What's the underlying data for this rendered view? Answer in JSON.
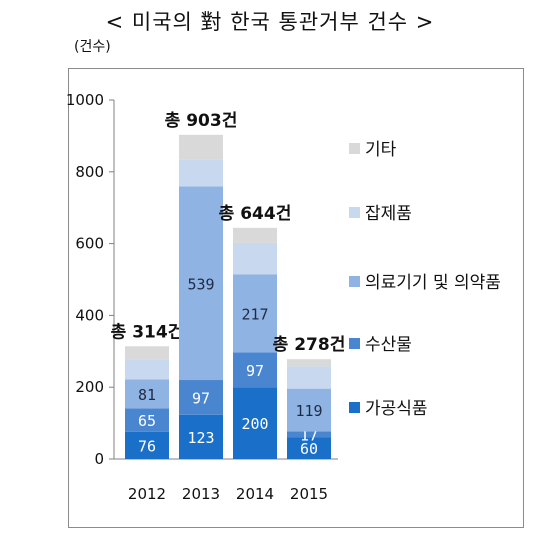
{
  "title": "< 미국의 對 한국 통관거부 건수 >",
  "unit": "(건수)",
  "chart_data": {
    "type": "bar",
    "stacked": true,
    "categories": [
      "2012",
      "2013",
      "2014",
      "2015"
    ],
    "series": [
      {
        "name": "가공식품",
        "values": [
          76,
          123,
          200,
          60
        ],
        "color": "#1a6fc9"
      },
      {
        "name": "수산물",
        "values": [
          65,
          97,
          97,
          17
        ],
        "color": "#4a86d0"
      },
      {
        "name": "의료기기 및 의약품",
        "values": [
          81,
          539,
          217,
          119
        ],
        "color": "#8fb4e3"
      },
      {
        "name": "잡제품",
        "values": [
          56,
          76,
          88,
          62
        ],
        "color": "#c8d8ee"
      },
      {
        "name": "기타",
        "values": [
          36,
          68,
          42,
          20
        ],
        "color": "#d9d9d9"
      }
    ],
    "show_label": [
      true,
      true,
      true,
      false
    ],
    "totals": [
      "총 314건",
      "총 903건",
      "총 644건",
      "총 278건"
    ],
    "ylim": [
      0,
      1000
    ],
    "yticks": [
      0,
      200,
      400,
      600,
      800,
      1000
    ],
    "grid": false,
    "legend": "right"
  }
}
